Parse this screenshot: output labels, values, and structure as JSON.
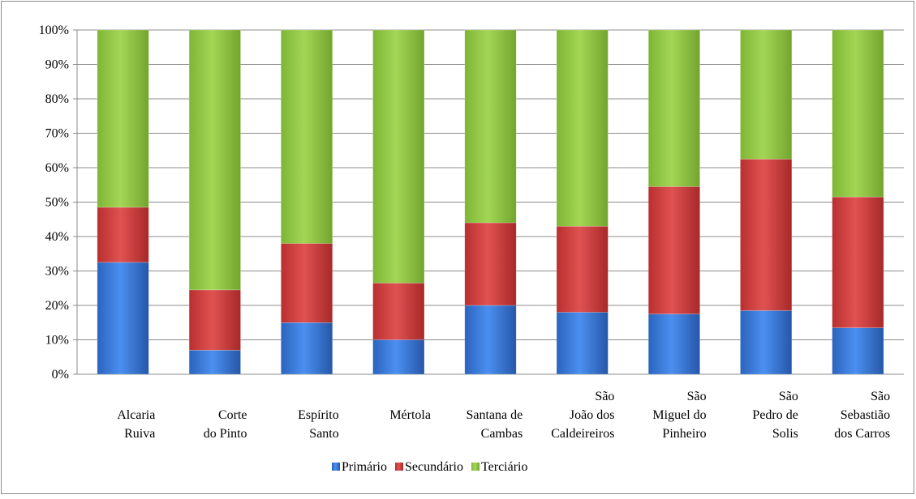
{
  "chart_data": {
    "type": "bar",
    "stacked": true,
    "percent": true,
    "categories": [
      [
        "Alcaria",
        "Ruiva"
      ],
      [
        "Corte",
        "do Pinto"
      ],
      [
        "Espírito",
        "Santo"
      ],
      [
        "Mértola"
      ],
      [
        "Santana de",
        "Cambas"
      ],
      [
        "São",
        "João dos",
        "Caldeireiros"
      ],
      [
        "São",
        "Miguel do",
        "Pinheiro"
      ],
      [
        "São",
        "Pedro de",
        "Solis"
      ],
      [
        "São",
        "Sebastião",
        "dos Carros"
      ]
    ],
    "series": [
      {
        "name": "Primário",
        "color": "#2f72d6",
        "values": [
          32.5,
          7,
          15,
          10,
          20,
          18,
          17.5,
          18.5,
          13.5
        ]
      },
      {
        "name": "Secundário",
        "color": "#d43a3a",
        "values": [
          16,
          17.5,
          23,
          16.5,
          24,
          25,
          37,
          44,
          38
        ]
      },
      {
        "name": "Terciário",
        "color": "#8fc53e",
        "values": [
          51.5,
          75.5,
          62,
          73.5,
          56,
          57,
          45.5,
          37.5,
          48.5
        ]
      }
    ],
    "yticks": [
      "0%",
      "10%",
      "20%",
      "30%",
      "40%",
      "50%",
      "60%",
      "70%",
      "80%",
      "90%",
      "100%"
    ],
    "ylim": [
      0,
      100
    ],
    "grid": true,
    "legend_position": "bottom"
  }
}
